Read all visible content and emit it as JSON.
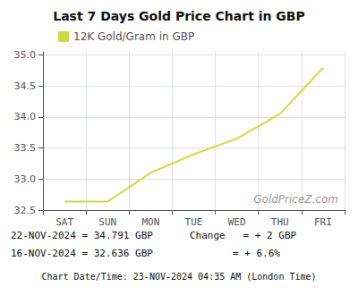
{
  "chart_data": {
    "type": "line",
    "title": "Last 7 Days Gold Price Chart in GBP",
    "categories": [
      "SAT",
      "SUN",
      "MON",
      "TUE",
      "WED",
      "THU",
      "FRI"
    ],
    "series": [
      {
        "name": "12K Gold/Gram in GBP",
        "color": "#ccdd44",
        "values": [
          32.636,
          32.636,
          33.1,
          33.4,
          33.65,
          34.05,
          34.791
        ]
      }
    ],
    "ylim": [
      32.5,
      35.05
    ],
    "yticks": [
      32.5,
      {
        "value": 33,
        "label": "33.0"
      },
      33.5,
      {
        "value": 34,
        "label": "34.0"
      },
      34.5,
      {
        "value": 35,
        "label": "35.0"
      }
    ],
    "grid": true,
    "legend": "upper left",
    "annotations": [
      "GoldPriceZ.com",
      "22-NOV-2024 = 34.791 GBP",
      "16-NOV-2024 = 32.636 GBP",
      "Change   = + 2 GBP",
      "= + 6.6%",
      "Chart Date/Time: 23-NOV-2024 04:35 AM (London Time)"
    ]
  }
}
